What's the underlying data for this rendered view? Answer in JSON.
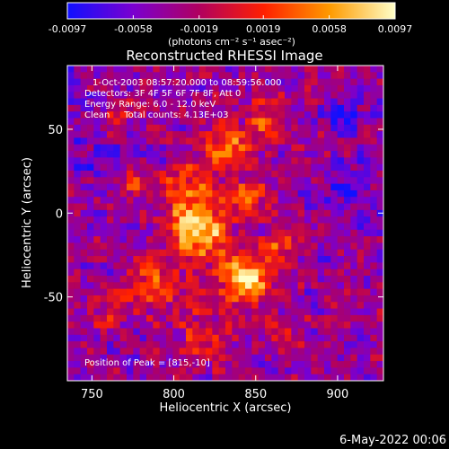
{
  "chart_data": {
    "type": "heatmap",
    "title": "Reconstructed RHESSI Image",
    "xlabel": "Heliocentric X (arcsec)",
    "ylabel": "Heliocentric Y (arcsec)",
    "xlim": [
      735,
      928
    ],
    "ylim": [
      -100,
      88
    ],
    "x_ticks": [
      750,
      800,
      850,
      900
    ],
    "y_ticks": [
      50,
      0,
      -50
    ],
    "x_tick_labels": [
      "750",
      "800",
      "850",
      "900"
    ],
    "y_tick_labels": [
      "50",
      "0",
      "-50"
    ],
    "colorbar": {
      "range": [
        -0.0097,
        0.0097
      ],
      "ticks": [
        -0.0097,
        -0.0058,
        -0.0019,
        0.0019,
        0.0058,
        0.0097
      ],
      "tick_labels": [
        "-0.0097",
        "-0.0058",
        "-0.0019",
        "0.0019",
        "0.0058",
        "0.0097"
      ],
      "unit_label": "(photons cm⁻² s⁻¹ asec⁻²)",
      "colors": [
        "#1010ff",
        "#7a00d0",
        "#b00060",
        "#ff2000",
        "#ff9a00",
        "#ffffc8"
      ]
    },
    "annotations": [
      "1-Oct-2003 08:57:20.000 to 08:59:56.000",
      "Detectors: 3F 4F 5F 6F 7F 8F, Att 0",
      "Energy Range: 6.0 - 12.0 keV",
      "Clean     Total counts: 4.13E+03"
    ],
    "peak_label": "Position of Peak = [815,-10]",
    "peak": [
      815,
      -10
    ],
    "blobs": [
      {
        "x": 815,
        "y": -10,
        "sigma": 12,
        "amp": 1.0
      },
      {
        "x": 843,
        "y": -38,
        "sigma": 11,
        "amp": 0.9
      },
      {
        "x": 808,
        "y": 15,
        "sigma": 9,
        "amp": 0.55
      },
      {
        "x": 832,
        "y": 38,
        "sigma": 10,
        "amp": 0.6
      },
      {
        "x": 855,
        "y": 55,
        "sigma": 8,
        "amp": 0.55
      },
      {
        "x": 775,
        "y": 18,
        "sigma": 6,
        "amp": 0.55
      },
      {
        "x": 790,
        "y": -42,
        "sigma": 12,
        "amp": 0.5
      },
      {
        "x": 868,
        "y": -18,
        "sigma": 8,
        "amp": 0.45
      },
      {
        "x": 845,
        "y": 10,
        "sigma": 8,
        "amp": 0.45
      },
      {
        "x": 765,
        "y": 55,
        "sigma": 6,
        "amp": 0.35
      },
      {
        "x": 820,
        "y": -75,
        "sigma": 12,
        "amp": 0.35
      },
      {
        "x": 870,
        "y": -70,
        "sigma": 8,
        "amp": 0.3
      },
      {
        "x": 760,
        "y": -60,
        "sigma": 8,
        "amp": 0.25
      },
      {
        "x": 905,
        "y": 55,
        "sigma": 7,
        "amp": -0.5
      },
      {
        "x": 905,
        "y": 15,
        "sigma": 12,
        "amp": -0.22
      },
      {
        "x": 750,
        "y": 30,
        "sigma": 10,
        "amp": -0.2
      }
    ]
  },
  "footer": {
    "date": "6-May-2022 00:06"
  }
}
